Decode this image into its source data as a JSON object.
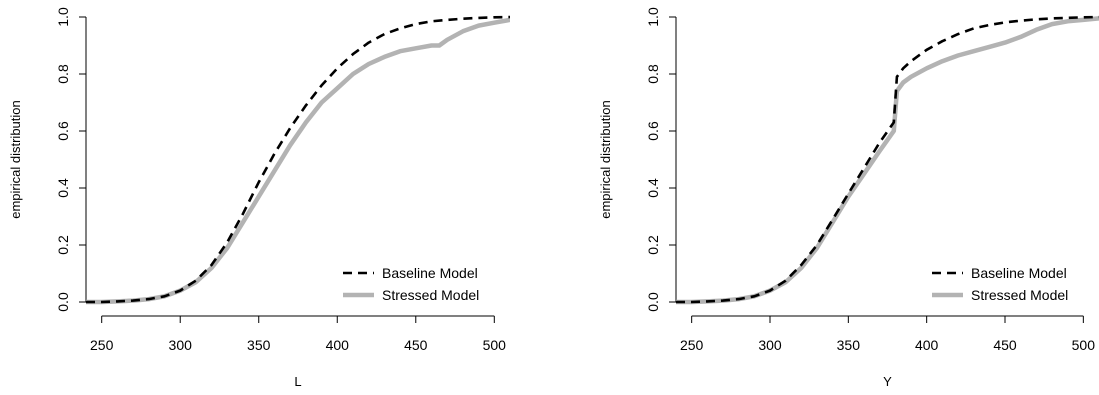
{
  "chart_data": [
    {
      "type": "line",
      "title": "",
      "xlabel": "L",
      "ylabel": "empirical distribution",
      "xlim": [
        240,
        510
      ],
      "ylim": [
        0,
        1
      ],
      "xticks": [
        250,
        300,
        350,
        400,
        450,
        500
      ],
      "yticks": [
        0.0,
        0.2,
        0.4,
        0.6,
        0.8,
        1.0
      ],
      "ytick_labels": [
        "0.0",
        "0.2",
        "0.4",
        "0.6",
        "0.8",
        "1.0"
      ],
      "legend": "bottom-right",
      "series": [
        {
          "name": "Baseline Model",
          "style": "dashed",
          "color": "#000000",
          "x": [
            240,
            250,
            260,
            270,
            280,
            290,
            300,
            310,
            320,
            330,
            340,
            350,
            360,
            370,
            380,
            390,
            400,
            410,
            420,
            430,
            440,
            450,
            460,
            470,
            480,
            490,
            500,
            510
          ],
          "y": [
            0.0,
            0.0,
            0.002,
            0.005,
            0.01,
            0.02,
            0.04,
            0.075,
            0.13,
            0.21,
            0.31,
            0.42,
            0.52,
            0.61,
            0.69,
            0.76,
            0.82,
            0.87,
            0.91,
            0.94,
            0.96,
            0.975,
            0.985,
            0.99,
            0.994,
            0.997,
            0.999,
            1.0
          ]
        },
        {
          "name": "Stressed Model",
          "style": "solid",
          "color": "#b3b3b3",
          "x": [
            240,
            250,
            260,
            270,
            280,
            290,
            300,
            310,
            320,
            330,
            340,
            350,
            360,
            370,
            380,
            390,
            400,
            410,
            420,
            430,
            440,
            450,
            460,
            465,
            470,
            480,
            490,
            500,
            510
          ],
          "y": [
            0.0,
            0.0,
            0.002,
            0.005,
            0.01,
            0.02,
            0.04,
            0.07,
            0.12,
            0.19,
            0.28,
            0.37,
            0.46,
            0.55,
            0.63,
            0.7,
            0.75,
            0.8,
            0.835,
            0.86,
            0.88,
            0.89,
            0.9,
            0.9,
            0.92,
            0.95,
            0.97,
            0.98,
            0.99
          ]
        }
      ]
    },
    {
      "type": "line",
      "title": "",
      "xlabel": "Y",
      "ylabel": "empirical distribution",
      "xlim": [
        240,
        510
      ],
      "ylim": [
        0,
        1
      ],
      "xticks": [
        250,
        300,
        350,
        400,
        450,
        500
      ],
      "yticks": [
        0.0,
        0.2,
        0.4,
        0.6,
        0.8,
        1.0
      ],
      "ytick_labels": [
        "0.0",
        "0.2",
        "0.4",
        "0.6",
        "0.8",
        "1.0"
      ],
      "legend": "bottom-right",
      "series": [
        {
          "name": "Baseline Model",
          "style": "dashed",
          "color": "#000000",
          "x": [
            240,
            250,
            260,
            270,
            280,
            290,
            300,
            310,
            320,
            330,
            340,
            350,
            360,
            370,
            379,
            381,
            385,
            390,
            400,
            410,
            420,
            430,
            440,
            450,
            460,
            470,
            480,
            490,
            500,
            510
          ],
          "y": [
            0.0,
            0.0,
            0.002,
            0.005,
            0.01,
            0.02,
            0.04,
            0.075,
            0.13,
            0.2,
            0.29,
            0.38,
            0.47,
            0.56,
            0.63,
            0.79,
            0.82,
            0.845,
            0.885,
            0.915,
            0.94,
            0.96,
            0.972,
            0.981,
            0.987,
            0.992,
            0.995,
            0.997,
            0.999,
            1.0
          ]
        },
        {
          "name": "Stressed Model",
          "style": "solid",
          "color": "#b3b3b3",
          "x": [
            240,
            250,
            260,
            270,
            280,
            290,
            300,
            310,
            320,
            330,
            340,
            350,
            360,
            370,
            379,
            381,
            385,
            390,
            400,
            410,
            420,
            430,
            440,
            450,
            460,
            470,
            480,
            490,
            500,
            510
          ],
          "y": [
            0.0,
            0.0,
            0.002,
            0.005,
            0.01,
            0.02,
            0.04,
            0.07,
            0.12,
            0.19,
            0.28,
            0.37,
            0.45,
            0.53,
            0.6,
            0.74,
            0.77,
            0.79,
            0.82,
            0.845,
            0.865,
            0.88,
            0.895,
            0.91,
            0.93,
            0.955,
            0.975,
            0.985,
            0.99,
            0.995
          ]
        }
      ]
    }
  ]
}
